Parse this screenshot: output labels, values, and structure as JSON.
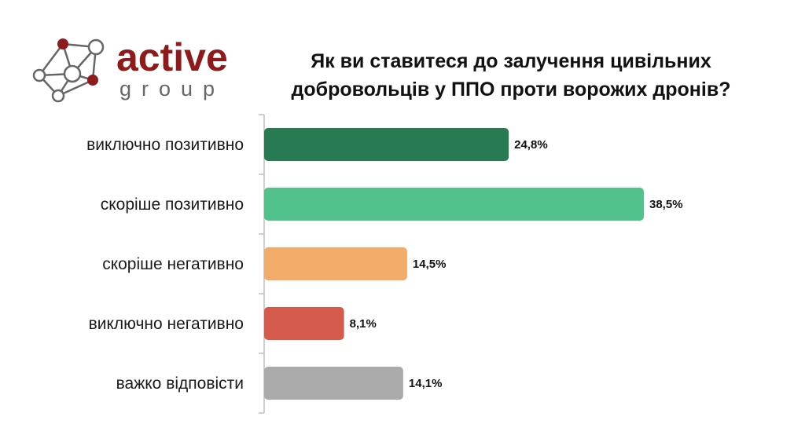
{
  "logo": {
    "word": "active",
    "sub": "group"
  },
  "colors": {
    "brand": "#8e1b1b"
  },
  "chart_data": {
    "type": "bar",
    "orientation": "horizontal",
    "title": "Як ви ставитеся до залучення цивільних добровольців у ППО проти ворожих дронів?",
    "title_lines": [
      "Як ви ставитеся до залучення цивільних",
      "добровольців у ППО проти ворожих дронів?"
    ],
    "categories": [
      "виключно позитивно",
      "скоріше позитивно",
      "скоріше негативно",
      "виключно негативно",
      "важко відповісти"
    ],
    "values": [
      24.8,
      38.5,
      14.5,
      8.1,
      14.1
    ],
    "value_labels": [
      "24,8%",
      "38,5%",
      "14,5%",
      "8,1%",
      "14,1%"
    ],
    "bar_colors": [
      "#277a52",
      "#52c28d",
      "#f2ab68",
      "#d45a4b",
      "#aaaaaa"
    ],
    "xlim": [
      0,
      38.5
    ],
    "grid": false,
    "legend": "none"
  }
}
